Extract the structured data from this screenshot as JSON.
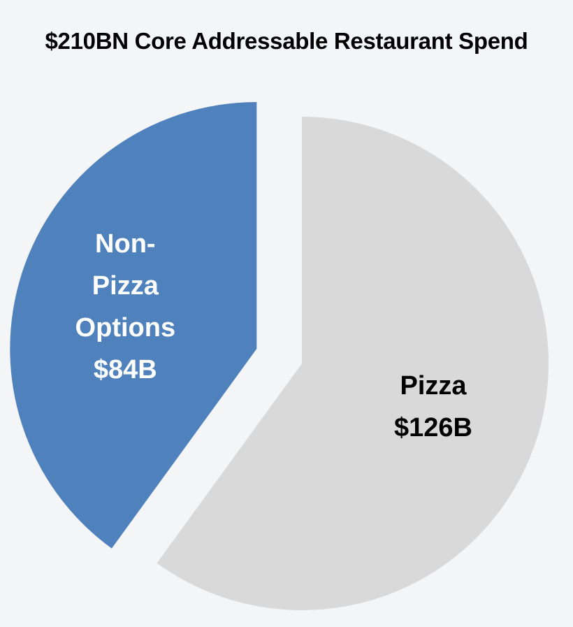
{
  "chart_data": {
    "type": "pie",
    "title": "$210BN Core Addressable Restaurant Spend",
    "slices": [
      {
        "name": "Pizza",
        "value": 126,
        "label_lines": [
          "Pizza",
          "$126B"
        ],
        "color": "#d9d9d9",
        "text_color": "#000000",
        "exploded": false
      },
      {
        "name": "Non-Pizza Options",
        "value": 84,
        "label_lines": [
          "Non-",
          "Pizza",
          "Options",
          "$84B"
        ],
        "color": "#4f81bd",
        "text_color": "#ffffff",
        "exploded": true
      }
    ]
  }
}
